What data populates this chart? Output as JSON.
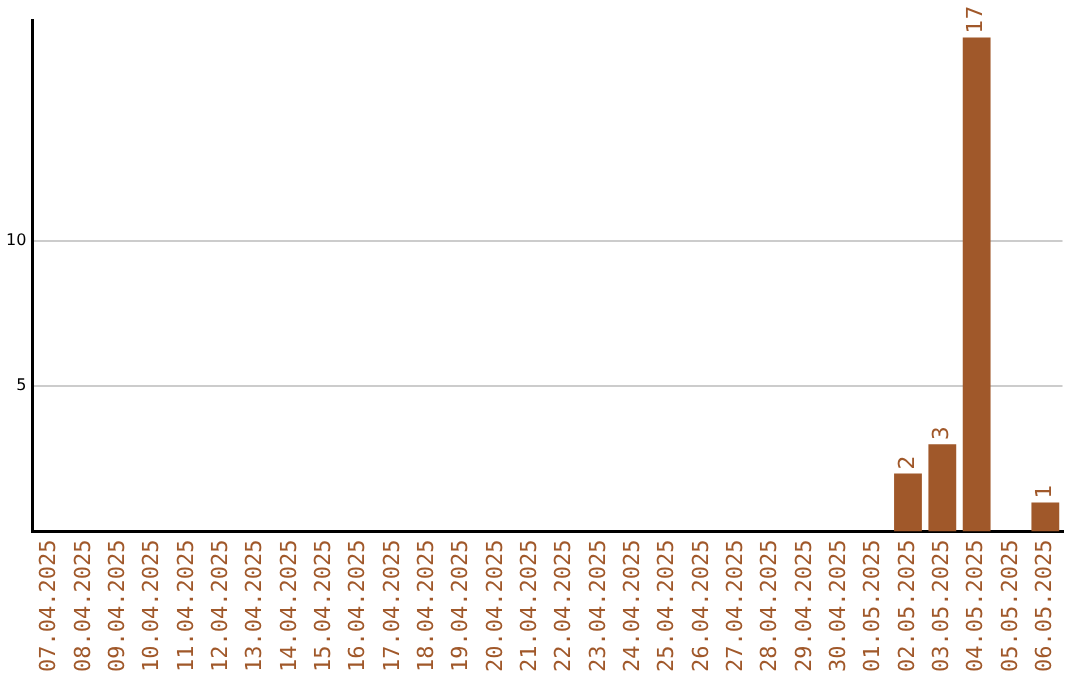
{
  "chart_data": {
    "type": "bar",
    "categories": [
      "07.04.2025",
      "08.04.2025",
      "09.04.2025",
      "10.04.2025",
      "11.04.2025",
      "12.04.2025",
      "13.04.2025",
      "14.04.2025",
      "15.04.2025",
      "16.04.2025",
      "17.04.2025",
      "18.04.2025",
      "19.04.2025",
      "20.04.2025",
      "21.04.2025",
      "22.04.2025",
      "23.04.2025",
      "24.04.2025",
      "25.04.2025",
      "26.04.2025",
      "27.04.2025",
      "28.04.2025",
      "29.04.2025",
      "30.04.2025",
      "01.05.2025",
      "02.05.2025",
      "03.05.2025",
      "04.05.2025",
      "05.05.2025",
      "06.05.2025"
    ],
    "values": [
      0,
      0,
      0,
      0,
      0,
      0,
      0,
      0,
      0,
      0,
      0,
      0,
      0,
      0,
      0,
      0,
      0,
      0,
      0,
      0,
      0,
      0,
      0,
      0,
      0,
      2,
      3,
      17,
      0,
      1
    ],
    "value_labels": [
      null,
      null,
      null,
      null,
      null,
      null,
      null,
      null,
      null,
      null,
      null,
      null,
      null,
      null,
      null,
      null,
      null,
      null,
      null,
      null,
      null,
      null,
      null,
      null,
      null,
      "2",
      "3",
      "17",
      null,
      "1"
    ],
    "color": "#a0582a",
    "ylim": [
      0,
      17.6
    ],
    "yticks": [
      5,
      10
    ],
    "grid": "y",
    "legend": false
  }
}
